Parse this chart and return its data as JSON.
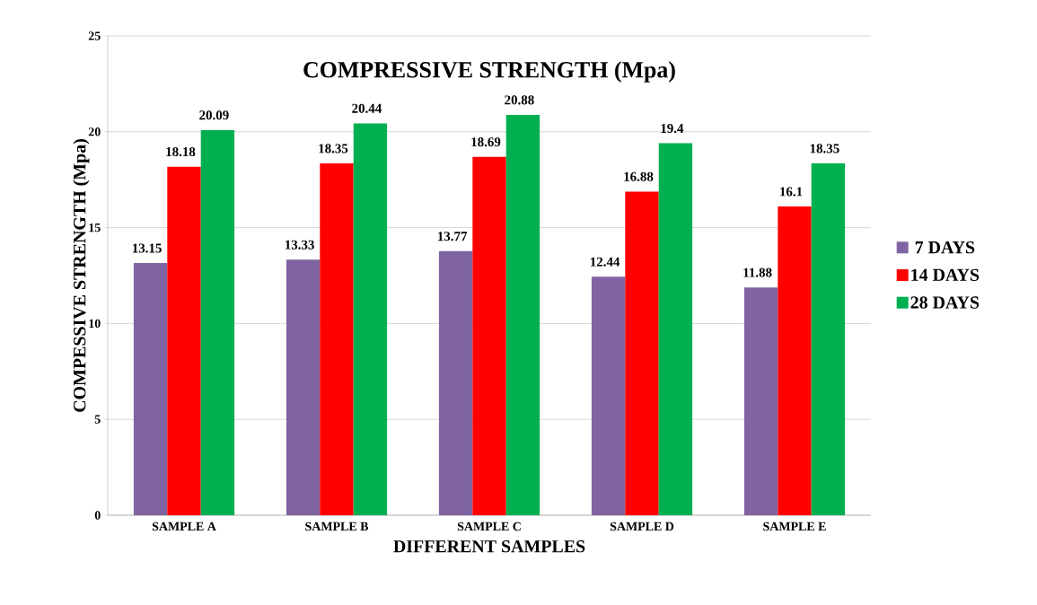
{
  "chart_data": {
    "type": "bar",
    "title": "COMPRESSIVE STRENGTH (Mpa)",
    "xlabel": "DIFFERENT SAMPLES",
    "ylabel": "COMPESSIVE STRENGTH (Mpa)",
    "categories": [
      "SAMPLE A",
      "SAMPLE B",
      "SAMPLE C",
      "SAMPLE D",
      "SAMPLE E"
    ],
    "series": [
      {
        "name": "7 DAYS",
        "color": "#8064a2",
        "values": [
          13.15,
          13.33,
          13.77,
          12.44,
          11.88
        ]
      },
      {
        "name": "14 DAYS",
        "color": "#ff0000",
        "values": [
          18.18,
          18.35,
          18.69,
          16.88,
          16.1
        ]
      },
      {
        "name": "28 DAYS",
        "color": "#00b050",
        "values": [
          20.09,
          20.44,
          20.88,
          19.4,
          18.35
        ]
      }
    ],
    "ylim": [
      0,
      25
    ],
    "yticks": [
      0,
      5,
      10,
      15,
      20,
      25
    ],
    "grid": "y",
    "legend": "right",
    "data_labels": true
  }
}
